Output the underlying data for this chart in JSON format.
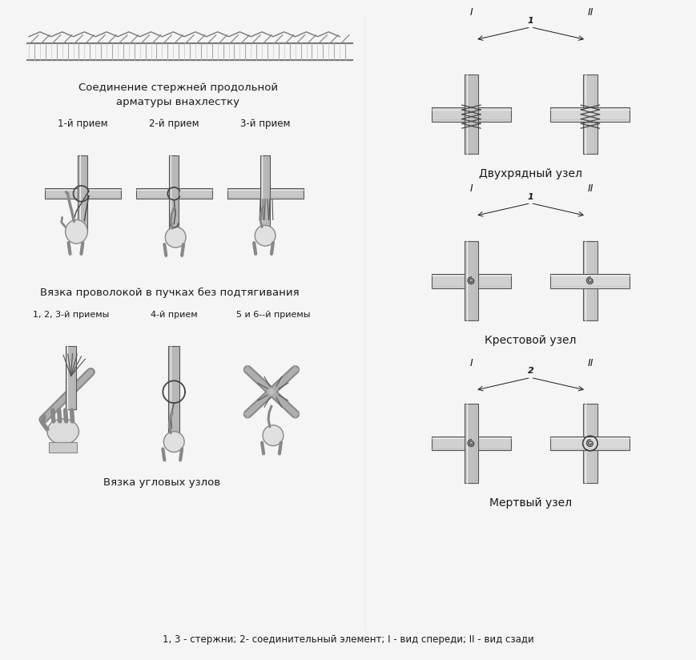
{
  "bg_color": "#f5f5f5",
  "title_lap": "Соединение стержней продольной\nарматуры внахлестку",
  "title_bundle": "Вязка проволокой в пучках без подтягивания",
  "title_corner": "Вязка угловых узлов",
  "title_double": "Двухрядный узел",
  "title_cross": "Крестовой узел",
  "title_dead": "Мертвый узел",
  "footer": "1, 3 - стержни; 2- соединительный элемент; I - вид спереди; II - вид сзади",
  "label_1st": "1-й прием",
  "label_2nd": "2-й прием",
  "label_3rd": "3-й прием",
  "label_123": "1, 2, 3-й приемы",
  "label_4th": "4-й прием",
  "label_56": "5 и 6--й приемы",
  "label_I": "I",
  "label_II": "II",
  "label_1": "1",
  "label_2": "2",
  "text_color": "#1a1a1a",
  "figsize": [
    8.7,
    8.24
  ],
  "dpi": 100
}
